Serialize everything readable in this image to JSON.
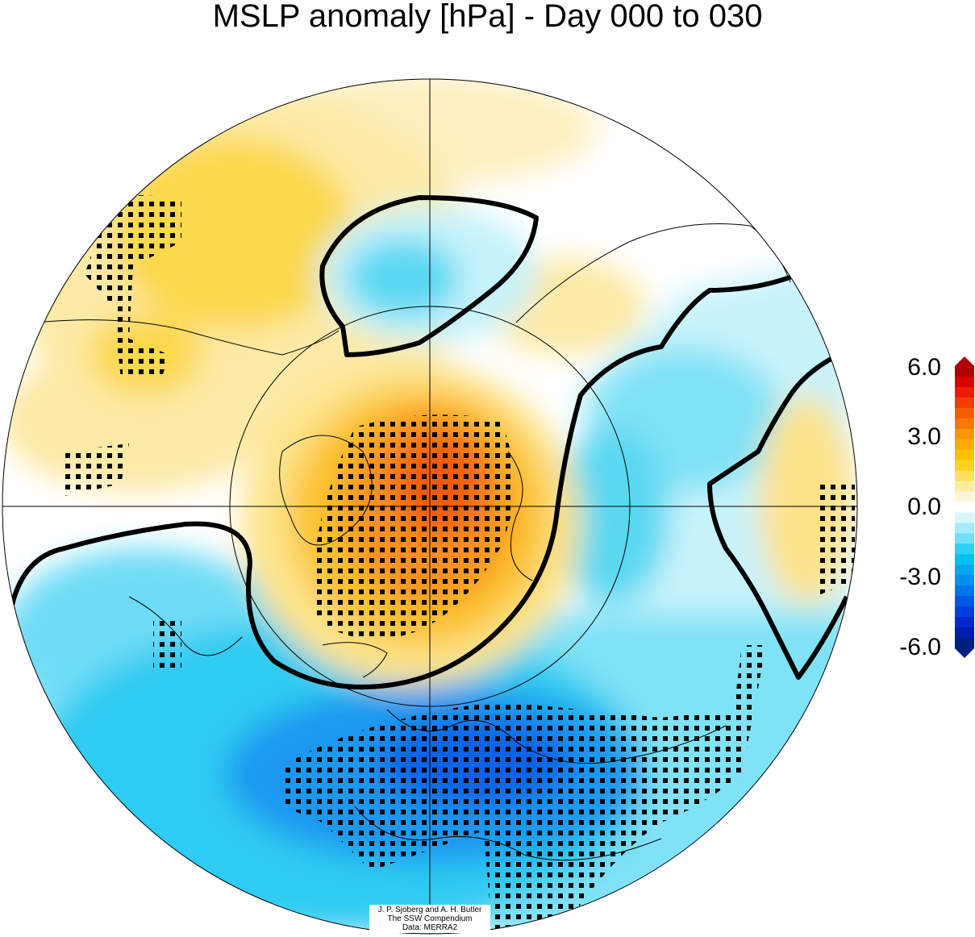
{
  "title": "MSLP anomaly [hPa] - Day 000 to 030",
  "colorbar": {
    "labels": [
      "6.0",
      "3.0",
      "0.0",
      "-3.0",
      "-6.0"
    ],
    "values": [
      6,
      3,
      0,
      -3,
      -6
    ],
    "colors": [
      "#b00000",
      "#d80000",
      "#ee1a00",
      "#f53c00",
      "#f85a00",
      "#fa7800",
      "#fb9600",
      "#fcab00",
      "#fcc000",
      "#fdd21c",
      "#fde060",
      "#feeda0",
      "#fff6d8",
      "#ffffff",
      "#d8f7fd",
      "#a5ecfa",
      "#6fe0f8",
      "#2ad2f6",
      "#00c2f0",
      "#00a8ee",
      "#0090ef",
      "#0074ee",
      "#0058e8",
      "#003ee0",
      "#0028d0",
      "#001cb0",
      "#002080"
    ]
  },
  "credit": [
    "J. P. Sjoberg and A. H. Butler",
    "The SSW Compendium",
    "Data: MERRA2"
  ]
}
